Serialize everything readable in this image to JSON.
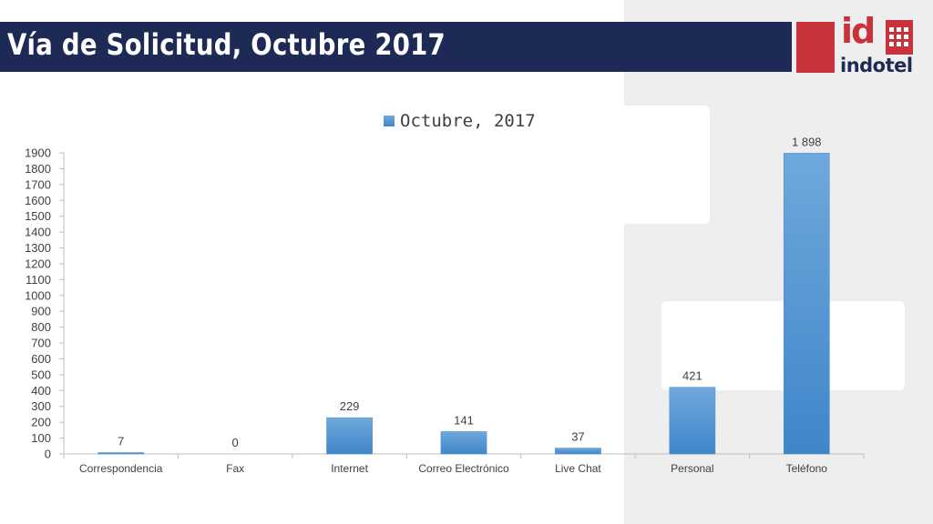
{
  "slide": {
    "title": "Vía de Solicitud, Octubre 2017"
  },
  "logo": {
    "word": "indotel",
    "id": "id"
  },
  "colors": {
    "bar": "#5b9bd5",
    "title_bg": "#1e2a56",
    "brand_red": "#c8323a"
  },
  "chart_data": {
    "type": "bar",
    "categories": [
      "Correspondencia",
      "Fax",
      "Internet",
      "Correo Electrónico",
      "Live Chat",
      "Personal",
      "Teléfono"
    ],
    "series": [
      {
        "name": "Octubre, 2017",
        "values": [
          7,
          0,
          229,
          141,
          37,
          421,
          1898
        ]
      }
    ],
    "data_labels": [
      "7",
      "0",
      "229",
      "141",
      "37",
      "421",
      "1 898"
    ],
    "ylim": [
      0,
      1900
    ],
    "yticks": [
      0,
      100,
      200,
      300,
      400,
      500,
      600,
      700,
      800,
      900,
      1000,
      1100,
      1200,
      1300,
      1400,
      1500,
      1600,
      1700,
      1800,
      1900
    ],
    "legend_position": "top",
    "grid": false
  }
}
